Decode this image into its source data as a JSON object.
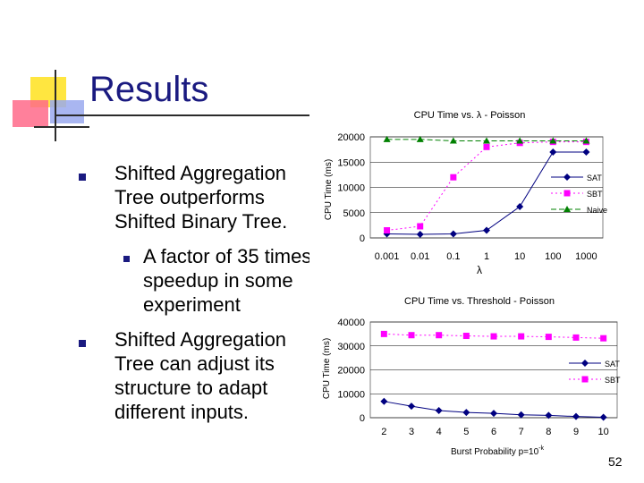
{
  "slide": {
    "title": "Results",
    "page_number": "52"
  },
  "bullets": [
    {
      "lines": [
        "Shifted Aggregation",
        "Tree outperforms",
        "Shifted Binary Tree."
      ],
      "sub": {
        "lines": [
          "A factor of 35 times",
          "speedup in some",
          "experiment"
        ]
      }
    },
    {
      "lines": [
        "Shifted Aggregation",
        "Tree can adjust its",
        "structure to adapt",
        "different inputs."
      ]
    }
  ],
  "colors": {
    "title": "#1a1a80",
    "bullet": "#1a1a80",
    "sat": "#000080",
    "sbt": "#ff00ff",
    "naive": "#008000"
  },
  "chart_data": [
    {
      "type": "line",
      "title": "CPU Time vs. λ - Poisson",
      "xlabel": "λ",
      "ylabel": "CPU Time (ms)",
      "x": [
        "0.001",
        "0.01",
        "0.1",
        "1",
        "10",
        "100",
        "1000"
      ],
      "yticks": [
        "0",
        "5000",
        "10000",
        "15000",
        "20000"
      ],
      "ylim": [
        0,
        20000
      ],
      "legend": "right",
      "series": [
        {
          "name": "SAT",
          "values": [
            800,
            700,
            800,
            1500,
            6200,
            17000,
            17000
          ]
        },
        {
          "name": "SBT",
          "values": [
            1500,
            2300,
            12000,
            18000,
            18800,
            19000,
            19000
          ]
        },
        {
          "name": "Naive",
          "values": [
            19500,
            19500,
            19200,
            19200,
            19200,
            19200,
            19200
          ]
        }
      ]
    },
    {
      "type": "line",
      "title": "CPU Time vs. Threshold - Poisson",
      "xlabel": "Burst Probability p=10",
      "xlabel_sup": "-k",
      "ylabel": "CPU Time (ms)",
      "x": [
        "2",
        "3",
        "4",
        "5",
        "6",
        "7",
        "8",
        "9",
        "10"
      ],
      "yticks": [
        "0",
        "10000",
        "20000",
        "30000",
        "40000"
      ],
      "ylim": [
        0,
        40000
      ],
      "legend": "right",
      "series": [
        {
          "name": "SAT",
          "values": [
            6800,
            4800,
            3000,
            2200,
            1800,
            1200,
            1000,
            500,
            200
          ]
        },
        {
          "name": "SBT",
          "values": [
            35000,
            34500,
            34500,
            34200,
            34000,
            34000,
            33800,
            33500,
            33200
          ]
        }
      ]
    }
  ]
}
